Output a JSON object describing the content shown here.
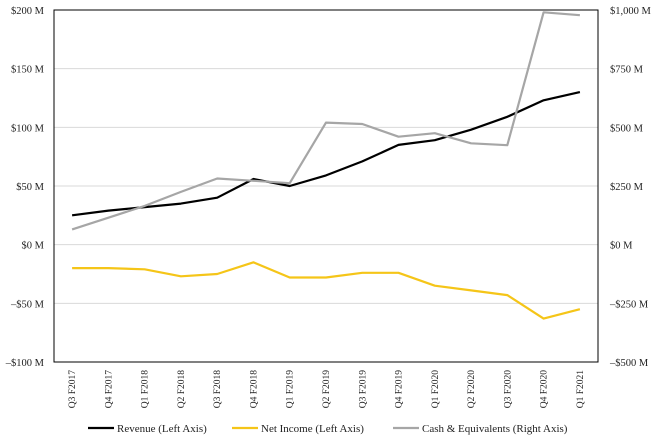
{
  "chart_data": {
    "type": "line",
    "title": "",
    "xlabel": "",
    "ylabel": "",
    "categories": [
      "Q3 F2017",
      "Q4 F2017",
      "Q1 F2018",
      "Q2 F2018",
      "Q3 F2018",
      "Q4 F2018",
      "Q1 F2019",
      "Q2 F2019",
      "Q3 F2019",
      "Q4 F2019",
      "Q1 F2020",
      "Q2 F2020",
      "Q3 F2020",
      "Q4 F2020",
      "Q1 F2021"
    ],
    "y_left": {
      "range": [
        -100,
        200
      ],
      "ticks": [
        -100,
        -50,
        0,
        50,
        100,
        150,
        200
      ],
      "tick_labels": [
        "–$100 M",
        "–$50 M",
        "$0 M",
        "$50 M",
        "$100 M",
        "$150 M",
        "$200 M"
      ]
    },
    "y_right": {
      "range": [
        -500,
        1000
      ],
      "ticks": [
        -500,
        -250,
        0,
        250,
        500,
        750,
        1000
      ],
      "tick_labels": [
        "–$500 M",
        "–$250 M",
        "$0 M",
        "$250 M",
        "$500 M",
        "$750 M",
        "$1,000 M"
      ]
    },
    "grid": true,
    "legend_position": "bottom",
    "series": [
      {
        "name": "Revenue (Left Axis)",
        "axis": "left",
        "color": "#000000",
        "values": [
          25,
          29,
          32,
          35,
          40,
          56,
          50,
          59,
          71,
          85,
          89,
          98,
          109,
          123,
          130
        ]
      },
      {
        "name": "Net Income (Left Axis)",
        "axis": "left",
        "color": "#F5C518",
        "values": [
          -20,
          -20,
          -21,
          -27,
          -25,
          -15,
          -28,
          -28,
          -24,
          -24,
          -35,
          -39,
          -43,
          -63,
          -55
        ]
      },
      {
        "name": "Cash & Equivalents (Right Axis)",
        "axis": "right",
        "color": "#A6A6A6",
        "values": [
          65,
          115,
          165,
          225,
          282,
          272,
          262,
          520,
          514,
          460,
          475,
          432,
          424,
          990,
          978
        ]
      }
    ]
  }
}
